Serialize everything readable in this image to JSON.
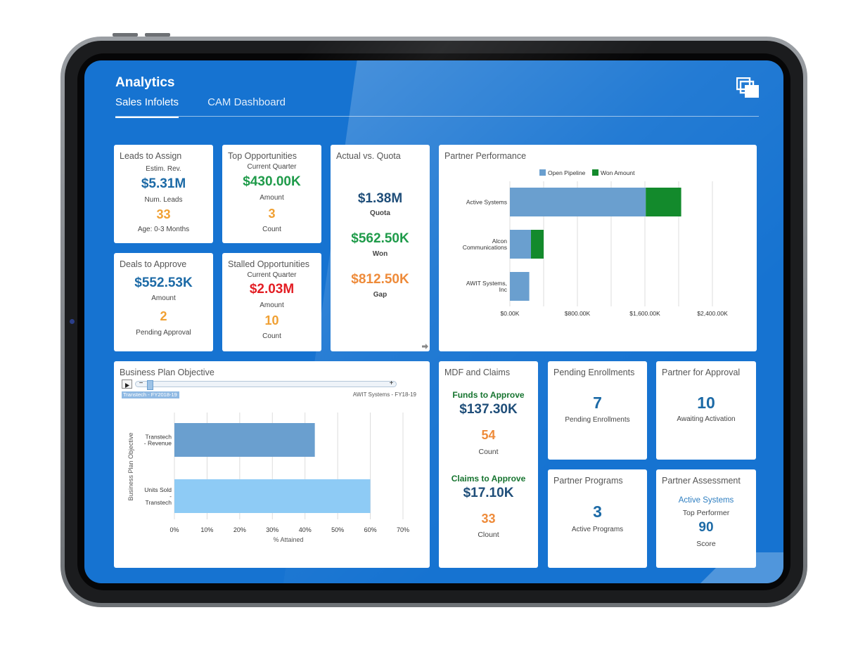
{
  "app": {
    "title": "Analytics",
    "tabs": [
      {
        "label": "Sales Infolets",
        "active": true
      },
      {
        "label": "CAM Dashboard",
        "active": false
      }
    ]
  },
  "cards": {
    "leads": {
      "title": "Leads to Assign",
      "sub1": "Estim. Rev.",
      "value1": "$5.31M",
      "sub2": "Num. Leads",
      "value2": "33",
      "sub3": "Age: 0-3 Months"
    },
    "top_opps": {
      "title": "Top Opportunities",
      "sub1": "Current Quarter",
      "value1": "$430.00K",
      "sub2": "Amount",
      "value2": "3",
      "sub3": "Count"
    },
    "actual_quota": {
      "title": "Actual vs. Quota",
      "quota_value": "$1.38M",
      "quota_label": "Quota",
      "won_value": "$562.50K",
      "won_label": "Won",
      "gap_value": "$812.50K",
      "gap_label": "Gap"
    },
    "deals": {
      "title": "Deals to Approve",
      "value1": "$552.53K",
      "sub1": "Amount",
      "value2": "2",
      "sub2": "Pending Approval"
    },
    "stalled": {
      "title": "Stalled Opportunities",
      "sub1": "Current Quarter",
      "value1": "$2.03M",
      "sub2": "Amount",
      "value2": "10",
      "sub3": "Count"
    },
    "mdf": {
      "title": "MDF and Claims",
      "funds_heading": "Funds to Approve",
      "funds_value": "$137.30K",
      "funds_count": "54",
      "funds_count_label": "Count",
      "claims_heading": "Claims to Approve",
      "claims_value": "$17.10K",
      "claims_count": "33",
      "claims_count_label": "Clount"
    },
    "pending_enrollments": {
      "title": "Pending Enrollments",
      "value": "7",
      "label": "Pending Enrollments"
    },
    "partner_approval": {
      "title": "Partner for Approval",
      "value": "10",
      "label": "Awaiting Activation"
    },
    "partner_programs": {
      "title": "Partner Programs",
      "value": "3",
      "label": "Active Programs"
    },
    "partner_assessment": {
      "title": "Partner Assessment",
      "link": "Active Systems",
      "sub": "Top Performer",
      "value": "90",
      "label": "Score"
    }
  },
  "business_plan": {
    "title": "Business Plan Objective",
    "slider_left_label": "Transtech - FY2018-19",
    "slider_right_label": "AWIT Systems - FY18-19",
    "play_icon": "play-icon",
    "minus_icon": "minus-icon",
    "plus_icon": "plus-icon"
  },
  "partner_performance": {
    "title": "Partner Performance"
  },
  "colors": {
    "screen": "#1673d1",
    "open_pipeline": "#6a9fcf",
    "won_amount": "#138a2c",
    "bp_bar1": "#6a9fcf",
    "bp_bar2": "#8ecbf5"
  },
  "chart_data": [
    {
      "type": "bar",
      "orientation": "horizontal",
      "stacked": true,
      "categories": [
        "Active Systems",
        "Alcon Communications",
        "AWIT Systems, Inc"
      ],
      "series": [
        {
          "name": "Open Pipeline",
          "values": [
            1610,
            250,
            230
          ]
        },
        {
          "name": "Won Amount",
          "values": [
            420,
            150,
            0
          ]
        }
      ],
      "xlim": [
        0,
        2400
      ],
      "xticks": [
        "$0.00K",
        "$800.00K",
        "$1,600.00K",
        "$2,400.00K"
      ],
      "legend_position": "top",
      "grid": true
    },
    {
      "type": "bar",
      "orientation": "horizontal",
      "categories": [
        "Transtech - Revenue",
        "Units Sold - Transtech"
      ],
      "values": [
        43,
        60
      ],
      "xlim": [
        0,
        70
      ],
      "xticks": [
        "0%",
        "10%",
        "20%",
        "30%",
        "40%",
        "50%",
        "60%",
        "70%"
      ],
      "xlabel": "% Attained",
      "ylabel": "Business Plan Objective",
      "grid": true
    }
  ]
}
